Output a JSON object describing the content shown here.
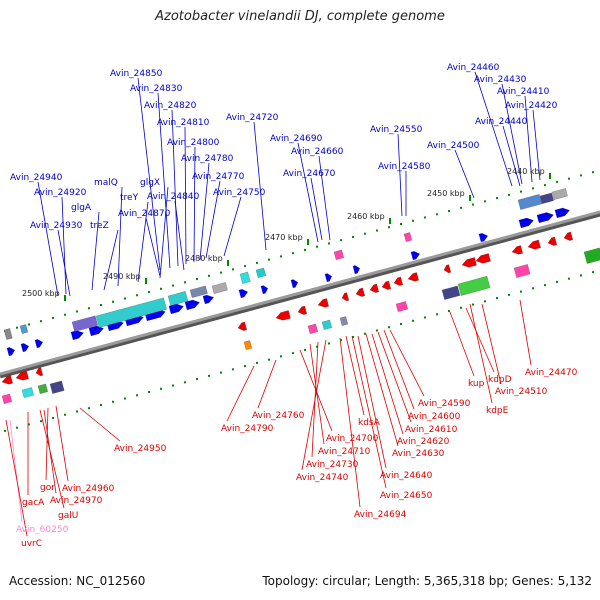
{
  "title": "Azotobacter vinelandii DJ, complete genome",
  "footer": {
    "accession": "Accession: NC_012560",
    "topology": "Topology: circular; Length: 5,365,318 bp; Genes: 5,132"
  },
  "colors": {
    "top_label": "#0000cc",
    "bottom_label": "#dd0000",
    "pink_label": "#ff88cc",
    "forward_gene": "#0000ee",
    "reverse_gene": "#ee0000",
    "tick": "#008800",
    "backbone": "#808080"
  },
  "scale_ticks": [
    "2500 kbp",
    "2490 kbp",
    "2480 kbp",
    "2470 kbp",
    "2460 kbp",
    "2450 kbp",
    "2440 kbp"
  ],
  "top_labels": [
    "Avin_24850",
    "Avin_24830",
    "Avin_24820",
    "Avin_24810",
    "Avin_24800",
    "Avin_24780",
    "Avin_24770",
    "Avin_24840",
    "Avin_24750",
    "Avin_24870",
    "glgX",
    "treY",
    "malQ",
    "Avin_24940",
    "Avin_24920",
    "glgA",
    "Avin_24930",
    "treZ",
    "Avin_24720",
    "Avin_24690",
    "Avin_24660",
    "Avin_24670",
    "Avin_24550",
    "Avin_24580",
    "Avin_24500",
    "Avin_24460",
    "Avin_24430",
    "Avin_24410",
    "Avin_24420",
    "Avin_24440"
  ],
  "bottom_labels": [
    "Avin_24950",
    "Avin_24790",
    "Avin_24760",
    "Avin_24700",
    "Avin_24710",
    "Avin_24730",
    "Avin_24740",
    "kdsA",
    "Avin_24590",
    "Avin_24600",
    "Avin_24610",
    "Avin_24620",
    "Avin_24630",
    "Avin_24640",
    "Avin_24650",
    "Avin_24694",
    "kup",
    "kdpD",
    "kdpE",
    "Avin_24510",
    "Avin_24470",
    "Avin_24960",
    "gor",
    "gacA",
    "Avin_24970",
    "galU",
    "Avin_60250",
    "uvrC"
  ]
}
